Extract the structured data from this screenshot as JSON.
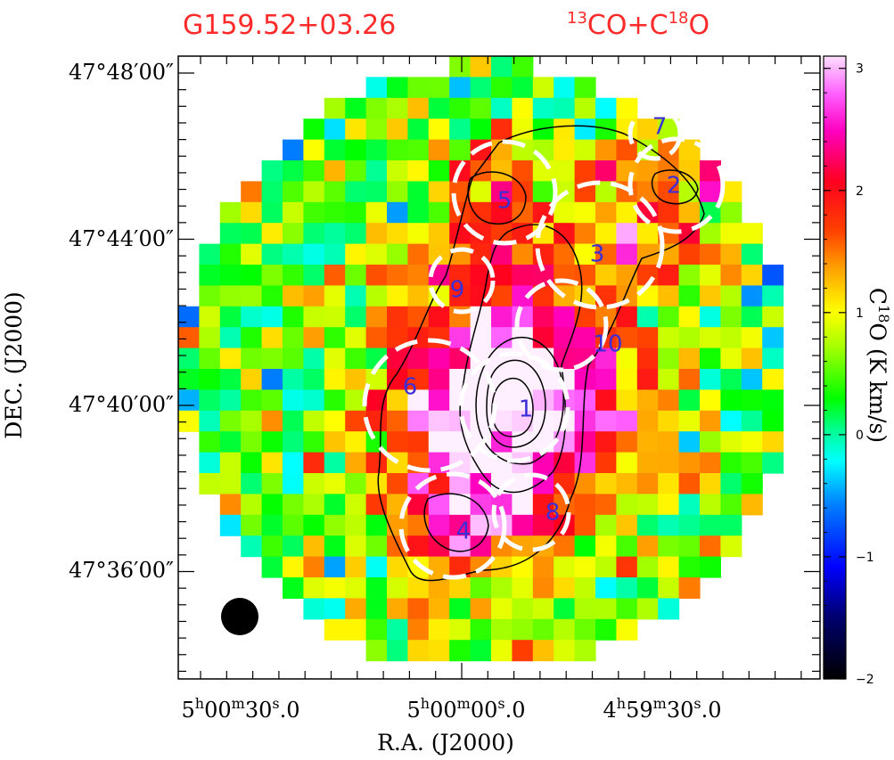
{
  "chart_data": {
    "type": "heatmap",
    "title_left": "G159.52+03.26",
    "title_right": {
      "base1": "13",
      "text1": "CO+C",
      "base2": "18",
      "text2": "O"
    },
    "xlabel": "R.A. (J2000)",
    "ylabel": "DEC. (J2000)",
    "colorbar": {
      "label": "C18O (K km/s)",
      "label_parts": {
        "a": "C",
        "b": "18",
        "c": "O  (K km/s)"
      },
      "range": [
        -2,
        3.1
      ],
      "ticks": [
        "3",
        "2",
        "1",
        "0",
        "−1",
        "−2"
      ],
      "tick_values": [
        3,
        2,
        1,
        0,
        -1,
        -2
      ]
    },
    "x_ticks": [
      {
        "h": "5",
        "m": "00",
        "s": "30",
        "f": ".0"
      },
      {
        "h": "5",
        "m": "00",
        "s": "00",
        "f": ".0"
      },
      {
        "h": "4",
        "m": "59",
        "s": "30",
        "f": ".0"
      }
    ],
    "y_ticks": [
      "47°48′00″",
      "47°44′00″",
      "47°40′00″",
      "47°36′00″"
    ],
    "grid": false,
    "colors": {
      "title": "#ff2a2a",
      "core_label": "#3a2fd6",
      "dashed_circles": "#ffffff",
      "contours": "#000000",
      "colormap": [
        "#000000",
        "#000080",
        "#0000ff",
        "#00ffff",
        "#00ff00",
        "#ffff00",
        "#ff8000",
        "#ff0000",
        "#ff00ff",
        "#ffffff"
      ]
    },
    "core_labels": [
      "1",
      "2",
      "3",
      "4",
      "5",
      "6",
      "7",
      "8",
      "9",
      "10"
    ]
  }
}
